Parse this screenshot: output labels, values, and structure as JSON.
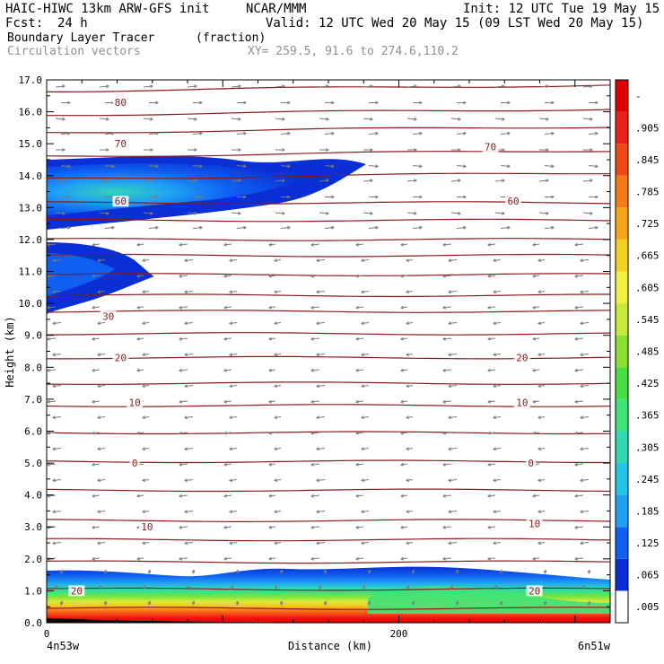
{
  "header": {
    "title_left": "HAIC-HIWC 13km ARW-GFS init",
    "agency": "NCAR/MMM",
    "init": "Init: 12 UTC Tue 19 May 15",
    "fcst_label": "Fcst:",
    "fcst_value": "24 h",
    "valid": "Valid: 12 UTC Wed 20 May 15 (09 LST Wed 20 May 15)",
    "field_name": "Boundary Layer Tracer",
    "field_units": "(fraction)",
    "vector_name": "Circulation vectors",
    "xy_range": "XY= 259.5, 91.6 to 274.6,110.2"
  },
  "chart_data": {
    "type": "heatmap",
    "ylabel": "Height (km)",
    "xlabel": "Distance (km)",
    "xlim": [
      0,
      320
    ],
    "ylim": [
      0.0,
      17.0
    ],
    "y_ticks": [
      "0.0",
      "1.0",
      "2.0",
      "3.0",
      "4.0",
      "5.0",
      "6.0",
      "7.0",
      "8.0",
      "9.0",
      "10.0",
      "11.0",
      "12.0",
      "13.0",
      "14.0",
      "15.0",
      "16.0",
      "17.0"
    ],
    "x_ticks": [
      "0",
      "200"
    ],
    "x_endpoint_left": "4n53w",
    "x_endpoint_right": "6n51w",
    "colorbar_labels": [
      ".005",
      ".065",
      ".125",
      ".185",
      ".245",
      ".305",
      ".365",
      ".425",
      ".485",
      ".545",
      ".605",
      ".665",
      ".725",
      ".785",
      ".845",
      ".905",
      "-"
    ],
    "colorbar_colors": [
      "#ffffff",
      "#0a2fd6",
      "#0f5ff0",
      "#1fa0f5",
      "#22c4e8",
      "#30d9b0",
      "#3fe27a",
      "#45e040",
      "#8ae030",
      "#c8e83a",
      "#f0f040",
      "#f5d020",
      "#f6a61a",
      "#f57a18",
      "#f04a14",
      "#e8221a",
      "#e00000"
    ],
    "contour_labels": [
      {
        "text": "80",
        "x": 42,
        "y": 16.3
      },
      {
        "text": "70",
        "x": 42,
        "y": 15.0
      },
      {
        "text": "70",
        "x": 252,
        "y": 14.9
      },
      {
        "text": "60",
        "x": 42,
        "y": 13.2
      },
      {
        "text": "60",
        "x": 265,
        "y": 13.2
      },
      {
        "text": "30",
        "x": 35,
        "y": 9.6
      },
      {
        "text": "20",
        "x": 42,
        "y": 8.3
      },
      {
        "text": "20",
        "x": 270,
        "y": 8.3
      },
      {
        "text": "10",
        "x": 50,
        "y": 6.9
      },
      {
        "text": "10",
        "x": 270,
        "y": 6.9
      },
      {
        "text": "0",
        "x": 50,
        "y": 5.0
      },
      {
        "text": "0",
        "x": 275,
        "y": 5.0
      },
      {
        "text": "10",
        "x": 57,
        "y": 3.0
      },
      {
        "text": "10",
        "x": 277,
        "y": 3.1
      },
      {
        "text": "20",
        "x": 17,
        "y": 1.0
      },
      {
        "text": "20",
        "x": 277,
        "y": 1.0
      }
    ]
  },
  "colors": {
    "contour": "#8b1a1a",
    "vector": "#7a7a7a"
  }
}
